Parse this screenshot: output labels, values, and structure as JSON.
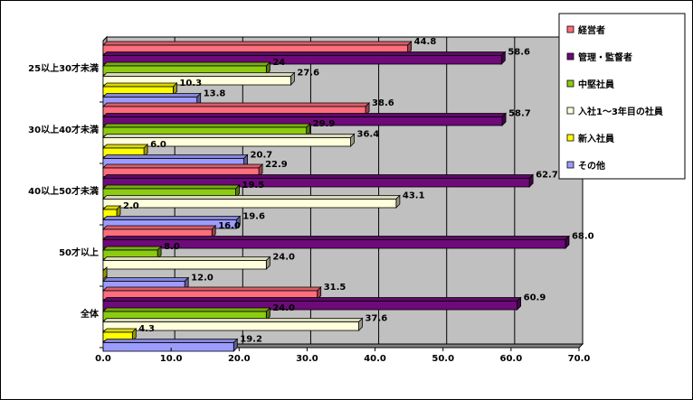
{
  "chart_data": {
    "type": "bar",
    "orientation": "horizontal",
    "categories": [
      "25以上30才未満",
      "30以上40才未満",
      "40以上50才未満",
      "50才以上",
      "全体"
    ],
    "series": [
      {
        "name": "経営者",
        "color": "#ff6e7c",
        "values": [
          44.8,
          38.6,
          22.9,
          16.0,
          31.5
        ],
        "labels": [
          "44.8",
          "38.6",
          "22.9",
          "16.0",
          "31.5"
        ]
      },
      {
        "name": "管理・監督者",
        "color": "#6e0a7a",
        "values": [
          58.6,
          58.7,
          62.7,
          68.0,
          60.9
        ],
        "labels": [
          "58.6",
          "58.7",
          "62.7",
          "68.0",
          "60.9"
        ]
      },
      {
        "name": "中堅社員",
        "color": "#8ccc10",
        "values": [
          24.0,
          29.9,
          19.5,
          8.0,
          24.0
        ],
        "labels": [
          "24",
          "29.9",
          "19.5",
          "8.0",
          "24.0"
        ]
      },
      {
        "name": "入社1～3年目の社員",
        "color": "#ffffdc",
        "values": [
          27.6,
          36.4,
          43.1,
          24.0,
          37.6
        ],
        "labels": [
          "27.6",
          "36.4",
          "43.1",
          "24.0",
          "37.6"
        ]
      },
      {
        "name": "新入社員",
        "color": "#ffff00",
        "values": [
          10.3,
          6.0,
          2.0,
          0.0,
          4.3
        ],
        "labels": [
          "10.3",
          "6.0",
          "2.0",
          "",
          "4.3"
        ]
      },
      {
        "name": "その他",
        "color": "#9c9cff",
        "values": [
          13.8,
          20.7,
          19.6,
          12.0,
          19.2
        ],
        "labels": [
          "13.8",
          "20.7",
          "19.6",
          "12.0",
          "19.2"
        ]
      }
    ],
    "xlim": [
      0,
      70
    ],
    "xticks": [
      "0.0",
      "10.0",
      "20.0",
      "30.0",
      "40.0",
      "50.0",
      "60.0",
      "70.0"
    ],
    "plot_background": "#c0c0c0",
    "grid": true,
    "legend_position": "right"
  }
}
